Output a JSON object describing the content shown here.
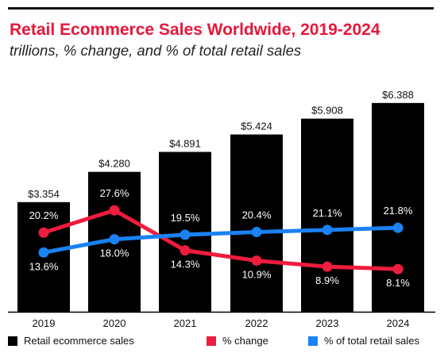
{
  "header": {
    "title": "Retail Ecommerce Sales Worldwide, 2019-2024",
    "subtitle": "trillions, % change, and % of total retail sales"
  },
  "colors": {
    "bars": "#000000",
    "pct_change": "#ee1c3e",
    "pct_total": "#1a82f2",
    "title": "#e8173a"
  },
  "legend": {
    "items": [
      {
        "label": "Retail ecommerce sales",
        "color": "#000000"
      },
      {
        "label": "% change",
        "color": "#ee1c3e"
      },
      {
        "label": "% of total retail sales",
        "color": "#1a82f2"
      }
    ]
  },
  "chart_data": {
    "type": "bar",
    "categories": [
      "2019",
      "2020",
      "2021",
      "2022",
      "2023",
      "2024"
    ],
    "series": [
      {
        "name": "Retail ecommerce sales",
        "type": "bar",
        "values": [
          3.354,
          4.28,
          4.891,
          5.424,
          5.908,
          6.388
        ],
        "labels": [
          "$3.354",
          "$4.280",
          "$4.891",
          "$5.424",
          "$5.908",
          "$6.388"
        ]
      },
      {
        "name": "% change",
        "type": "line",
        "values": [
          20.2,
          27.6,
          14.3,
          10.9,
          8.9,
          8.1
        ],
        "labels": [
          "20.2%",
          "27.6%",
          "14.3%",
          "10.9%",
          "8.9%",
          "8.1%"
        ]
      },
      {
        "name": "% of total retail sales",
        "type": "line",
        "values": [
          13.6,
          18.0,
          19.5,
          20.4,
          21.1,
          21.8
        ],
        "labels": [
          "13.6%",
          "18.0%",
          "19.5%",
          "20.4%",
          "21.1%",
          "21.8%"
        ]
      }
    ],
    "title": "Retail Ecommerce Sales Worldwide, 2019-2024",
    "subtitle": "trillions, % change, and % of total retail sales",
    "grid": false,
    "legend_position": "bottom"
  }
}
